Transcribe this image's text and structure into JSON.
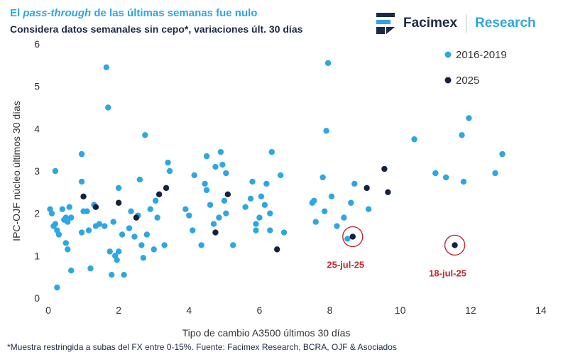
{
  "header": {
    "title_pre": "El ",
    "title_em": "pass-through",
    "title_post": " de las últimas semanas fue nulo",
    "subtitle": "Considera datos semanales sin cepo*, variaciones últ. 30 días"
  },
  "logo": {
    "brand": "Facimex",
    "research": "Research",
    "icon": "facimex-logo-icon",
    "color": "#1d2a44"
  },
  "footnote": "*Muestra restringida a subas del FX entre 0-15%. Fuente: Facimex Research, BCRA, OJF & Asociados",
  "chart_data": {
    "type": "scatter",
    "xlabel": "Tipo de cambio A3500 últimos 30 días",
    "ylabel": "IPC-OJF núcleo últimos 30 días",
    "xlim": [
      0,
      14
    ],
    "ylim": [
      0,
      6
    ],
    "xticks": [
      0,
      2,
      4,
      6,
      8,
      10,
      12,
      14
    ],
    "yticks": [
      0,
      1,
      2,
      3,
      4,
      5,
      6
    ],
    "grid": false,
    "legend_position": "top-right",
    "series": [
      {
        "name": "2016-2019",
        "color": "#2da6e4",
        "points": [
          [
            0.05,
            2.1
          ],
          [
            0.1,
            2.0
          ],
          [
            0.15,
            1.7
          ],
          [
            0.2,
            1.75
          ],
          [
            0.25,
            1.6
          ],
          [
            0.2,
            3.0
          ],
          [
            0.25,
            0.25
          ],
          [
            0.3,
            1.5
          ],
          [
            0.4,
            2.1
          ],
          [
            0.45,
            1.85
          ],
          [
            0.5,
            1.9
          ],
          [
            0.5,
            1.3
          ],
          [
            0.55,
            1.15
          ],
          [
            0.55,
            1.8
          ],
          [
            0.6,
            2.15
          ],
          [
            0.65,
            1.9
          ],
          [
            0.65,
            0.65
          ],
          [
            0.95,
            3.4
          ],
          [
            0.95,
            2.75
          ],
          [
            0.95,
            1.55
          ],
          [
            1.0,
            2.05
          ],
          [
            1.1,
            2.05
          ],
          [
            1.15,
            1.6
          ],
          [
            1.2,
            0.7
          ],
          [
            1.3,
            2.2
          ],
          [
            1.35,
            1.7
          ],
          [
            1.45,
            1.75
          ],
          [
            1.6,
            1.7
          ],
          [
            1.65,
            5.45
          ],
          [
            1.7,
            4.5
          ],
          [
            1.75,
            1.1
          ],
          [
            1.8,
            0.55
          ],
          [
            1.85,
            1.8
          ],
          [
            1.9,
            1.0
          ],
          [
            1.95,
            0.9
          ],
          [
            2.0,
            2.6
          ],
          [
            2.0,
            1.1
          ],
          [
            2.1,
            1.5
          ],
          [
            2.15,
            0.55
          ],
          [
            2.3,
            1.65
          ],
          [
            2.35,
            2.05
          ],
          [
            2.45,
            1.45
          ],
          [
            2.55,
            1.95
          ],
          [
            2.6,
            2.8
          ],
          [
            2.65,
            1.25
          ],
          [
            2.7,
            0.95
          ],
          [
            2.75,
            3.85
          ],
          [
            2.8,
            1.5
          ],
          [
            2.9,
            2.1
          ],
          [
            3.0,
            1.15
          ],
          [
            3.05,
            2.3
          ],
          [
            3.1,
            1.9
          ],
          [
            3.3,
            1.25
          ],
          [
            3.4,
            3.2
          ],
          [
            3.45,
            3.0
          ],
          [
            3.9,
            2.1
          ],
          [
            4.0,
            1.95
          ],
          [
            4.1,
            1.6
          ],
          [
            4.15,
            2.9
          ],
          [
            4.35,
            1.25
          ],
          [
            4.45,
            2.7
          ],
          [
            4.5,
            2.55
          ],
          [
            4.5,
            3.35
          ],
          [
            4.6,
            2.2
          ],
          [
            4.7,
            1.75
          ],
          [
            4.75,
            3.1
          ],
          [
            4.85,
            1.9
          ],
          [
            4.9,
            3.45
          ],
          [
            4.95,
            3.15
          ],
          [
            5.0,
            2.3
          ],
          [
            5.05,
            2.0
          ],
          [
            5.05,
            2.95
          ],
          [
            5.25,
            1.25
          ],
          [
            5.6,
            2.15
          ],
          [
            5.75,
            2.35
          ],
          [
            5.8,
            2.75
          ],
          [
            5.9,
            1.6
          ],
          [
            5.9,
            1.75
          ],
          [
            6.0,
            1.9
          ],
          [
            6.05,
            2.4
          ],
          [
            6.15,
            2.2
          ],
          [
            6.2,
            2.7
          ],
          [
            6.3,
            1.6
          ],
          [
            6.3,
            2.0
          ],
          [
            6.35,
            3.45
          ],
          [
            6.6,
            2.9
          ],
          [
            6.7,
            1.55
          ],
          [
            7.5,
            2.25
          ],
          [
            7.55,
            2.3
          ],
          [
            7.6,
            1.8
          ],
          [
            7.8,
            2.85
          ],
          [
            7.85,
            2.05
          ],
          [
            7.9,
            3.95
          ],
          [
            7.95,
            5.55
          ],
          [
            8.05,
            2.4
          ],
          [
            8.2,
            1.7
          ],
          [
            8.4,
            1.9
          ],
          [
            8.5,
            1.4
          ],
          [
            8.6,
            2.25
          ],
          [
            8.7,
            2.7
          ],
          [
            9.1,
            2.1
          ],
          [
            10.4,
            3.75
          ],
          [
            11.0,
            2.95
          ],
          [
            11.3,
            2.85
          ],
          [
            11.75,
            3.85
          ],
          [
            11.8,
            2.75
          ],
          [
            11.95,
            4.25
          ],
          [
            12.7,
            2.95
          ],
          [
            12.9,
            3.4
          ]
        ]
      },
      {
        "name": "2025",
        "color": "#16213f",
        "points": [
          [
            1.0,
            2.4
          ],
          [
            1.35,
            2.15
          ],
          [
            2.0,
            2.25
          ],
          [
            2.5,
            1.9
          ],
          [
            3.15,
            2.45
          ],
          [
            3.35,
            2.6
          ],
          [
            4.75,
            1.55
          ],
          [
            5.1,
            2.45
          ],
          [
            6.5,
            1.15
          ],
          [
            8.65,
            1.45
          ],
          [
            9.05,
            2.6
          ],
          [
            9.55,
            3.05
          ],
          [
            9.65,
            2.5
          ],
          [
            11.55,
            1.25
          ]
        ]
      }
    ],
    "annotations": [
      {
        "text": "25-jul-25",
        "x": 8.65,
        "y": 1.45
      },
      {
        "text": "18-jul-25",
        "x": 11.55,
        "y": 1.25
      }
    ]
  }
}
